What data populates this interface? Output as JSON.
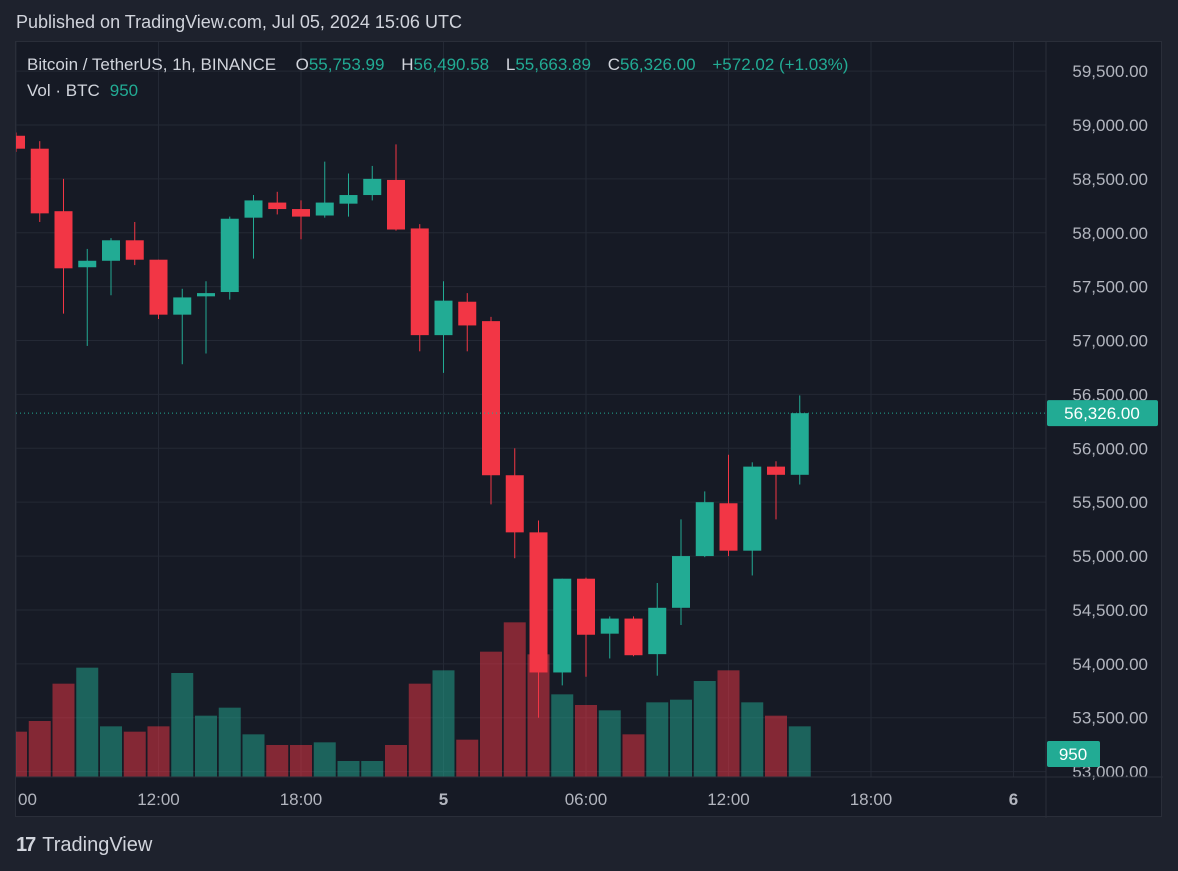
{
  "published": "Published on TradingView.com, Jul 05, 2024 15:06 UTC",
  "legend": {
    "symbol": "Bitcoin / TetherUS, 1h, BINANCE",
    "o_label": "O",
    "o_value": "55,753.99",
    "h_label": "H",
    "h_value": "56,490.58",
    "l_label": "L",
    "l_value": "55,663.89",
    "c_label": "C",
    "c_value": "56,326.00",
    "change": "+572.02 (+1.03%)",
    "vol_label": "Vol · BTC",
    "vol_value": "950"
  },
  "logo": {
    "mark": "17",
    "text": "TradingView"
  },
  "colors": {
    "up": "#22ab94",
    "down": "#f23645",
    "up_volume": "#22ab94",
    "down_volume": "#f23645",
    "background": "#161a25",
    "grid": "#242935",
    "text": "#b2b5be"
  },
  "chart_data": {
    "type": "candlestick",
    "interval": "1h",
    "price_axis_labels": [
      "59,500.00",
      "59,000.00",
      "58,500.00",
      "58,000.00",
      "57,500.00",
      "57,000.00",
      "56,500.00",
      "56,000.00",
      "55,500.00",
      "55,000.00",
      "54,500.00",
      "54,000.00",
      "53,500.00",
      "53,000.00"
    ],
    "price_ticks": [
      59500,
      59000,
      58500,
      58000,
      57500,
      57000,
      56500,
      56000,
      55500,
      55000,
      54500,
      54000,
      53500,
      53000
    ],
    "price_range": [
      52950,
      59770
    ],
    "time_axis_labels": [
      {
        "label": "00",
        "slot": 0
      },
      {
        "label": "12:00",
        "slot": 6
      },
      {
        "label": "18:00",
        "slot": 12
      },
      {
        "label": "5",
        "slot": 18
      },
      {
        "label": "06:00",
        "slot": 24
      },
      {
        "label": "12:00",
        "slot": 30
      },
      {
        "label": "18:00",
        "slot": 36
      },
      {
        "label": "6",
        "slot": 42
      }
    ],
    "last_price": 56326,
    "last_price_label": "56,326.00",
    "last_volume_label": "950",
    "volume_range": [
      0,
      2500
    ],
    "candles": [
      {
        "o": 58900,
        "h": 58930,
        "l": 58750,
        "c": 58780,
        "v": 850
      },
      {
        "o": 58780,
        "h": 58850,
        "l": 58100,
        "c": 58180,
        "v": 1050
      },
      {
        "o": 58200,
        "h": 58500,
        "l": 57250,
        "c": 57670,
        "v": 1750
      },
      {
        "o": 57680,
        "h": 57850,
        "l": 56950,
        "c": 57740,
        "v": 2050
      },
      {
        "o": 57740,
        "h": 57950,
        "l": 57420,
        "c": 57930,
        "v": 950
      },
      {
        "o": 57930,
        "h": 58100,
        "l": 57700,
        "c": 57750,
        "v": 850
      },
      {
        "o": 57750,
        "h": 57750,
        "l": 57200,
        "c": 57240,
        "v": 950
      },
      {
        "o": 57240,
        "h": 57480,
        "l": 56780,
        "c": 57400,
        "v": 1950
      },
      {
        "o": 57410,
        "h": 57550,
        "l": 56880,
        "c": 57440,
        "v": 1150
      },
      {
        "o": 57450,
        "h": 58150,
        "l": 57380,
        "c": 58130,
        "v": 1300
      },
      {
        "o": 58140,
        "h": 58350,
        "l": 57760,
        "c": 58300,
        "v": 800
      },
      {
        "o": 58280,
        "h": 58380,
        "l": 58170,
        "c": 58220,
        "v": 600
      },
      {
        "o": 58220,
        "h": 58300,
        "l": 57940,
        "c": 58150,
        "v": 600
      },
      {
        "o": 58160,
        "h": 58660,
        "l": 58140,
        "c": 58280,
        "v": 650
      },
      {
        "o": 58270,
        "h": 58550,
        "l": 58150,
        "c": 58350,
        "v": 300
      },
      {
        "o": 58350,
        "h": 58620,
        "l": 58300,
        "c": 58500,
        "v": 300
      },
      {
        "o": 58490,
        "h": 58820,
        "l": 58020,
        "c": 58030,
        "v": 600
      },
      {
        "o": 58040,
        "h": 58080,
        "l": 56900,
        "c": 57050,
        "v": 1750
      },
      {
        "o": 57050,
        "h": 57550,
        "l": 56700,
        "c": 57370,
        "v": 2000
      },
      {
        "o": 57360,
        "h": 57440,
        "l": 56900,
        "c": 57140,
        "v": 700
      },
      {
        "o": 57180,
        "h": 57220,
        "l": 55480,
        "c": 55750,
        "v": 2350
      },
      {
        "o": 55750,
        "h": 56000,
        "l": 54980,
        "c": 55220,
        "v": 2900
      },
      {
        "o": 55220,
        "h": 55330,
        "l": 53500,
        "c": 53920,
        "v": 2300
      },
      {
        "o": 53920,
        "h": 54790,
        "l": 53800,
        "c": 54790,
        "v": 1550
      },
      {
        "o": 54790,
        "h": 54800,
        "l": 53880,
        "c": 54270,
        "v": 1350
      },
      {
        "o": 54280,
        "h": 54440,
        "l": 54050,
        "c": 54420,
        "v": 1250
      },
      {
        "o": 54420,
        "h": 54440,
        "l": 54070,
        "c": 54080,
        "v": 800
      },
      {
        "o": 54090,
        "h": 54750,
        "l": 53890,
        "c": 54520,
        "v": 1400
      },
      {
        "o": 54520,
        "h": 55340,
        "l": 54360,
        "c": 55000,
        "v": 1450
      },
      {
        "o": 55000,
        "h": 55600,
        "l": 54990,
        "c": 55500,
        "v": 1800
      },
      {
        "o": 55490,
        "h": 55940,
        "l": 55000,
        "c": 55050,
        "v": 2000
      },
      {
        "o": 55050,
        "h": 55870,
        "l": 54820,
        "c": 55830,
        "v": 1400
      },
      {
        "o": 55830,
        "h": 55880,
        "l": 55340,
        "c": 55754,
        "v": 1150
      },
      {
        "o": 55754,
        "h": 56490.58,
        "l": 55663.89,
        "c": 56326,
        "v": 950
      }
    ]
  }
}
